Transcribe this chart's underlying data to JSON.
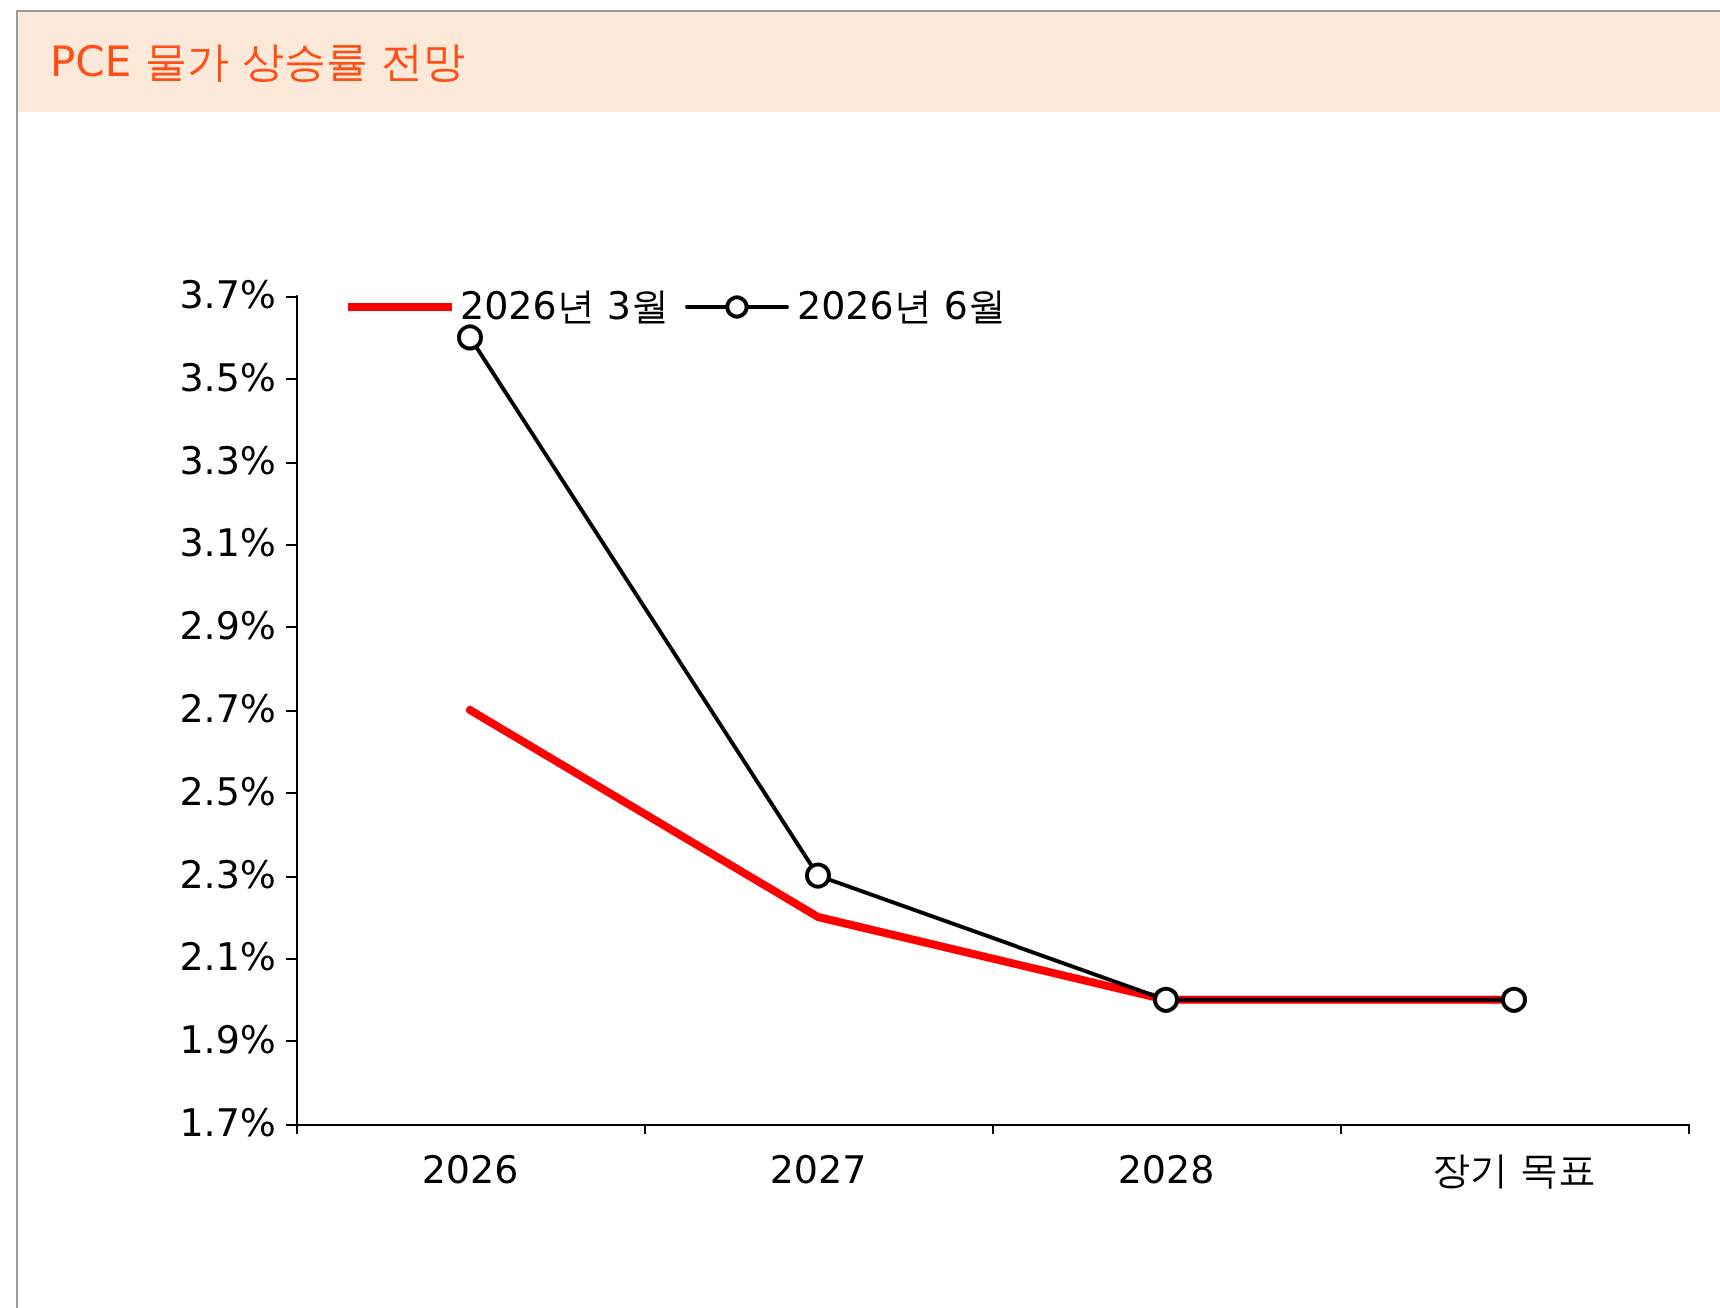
{
  "chart_data": {
    "type": "line",
    "title": "PCE 물가 상승률 전망",
    "categories": [
      "2026",
      "2027",
      "2028",
      "장기 목표"
    ],
    "series": [
      {
        "name": "2026년 3월",
        "color": "#ff0000",
        "marker": "none",
        "values": [
          2.7,
          2.2,
          2.0,
          2.0
        ]
      },
      {
        "name": "2026년 6월",
        "color": "#000000",
        "marker": "circle",
        "values": [
          3.6,
          2.3,
          2.0,
          2.0
        ]
      }
    ],
    "ylim": [
      1.7,
      3.7
    ],
    "yticks": [
      {
        "value": 1.7,
        "label": "1.7%"
      },
      {
        "value": 1.9,
        "label": "1.9%"
      },
      {
        "value": 2.1,
        "label": "2.1%"
      },
      {
        "value": 2.3,
        "label": "2.3%"
      },
      {
        "value": 2.5,
        "label": "2.5%"
      },
      {
        "value": 2.7,
        "label": "2.7%"
      },
      {
        "value": 2.9,
        "label": "2.9%"
      },
      {
        "value": 3.1,
        "label": "3.1%"
      },
      {
        "value": 3.3,
        "label": "3.3%"
      },
      {
        "value": 3.5,
        "label": "3.5%"
      },
      {
        "value": 3.7,
        "label": "3.7%"
      }
    ],
    "grid": false,
    "legend": "top left"
  }
}
